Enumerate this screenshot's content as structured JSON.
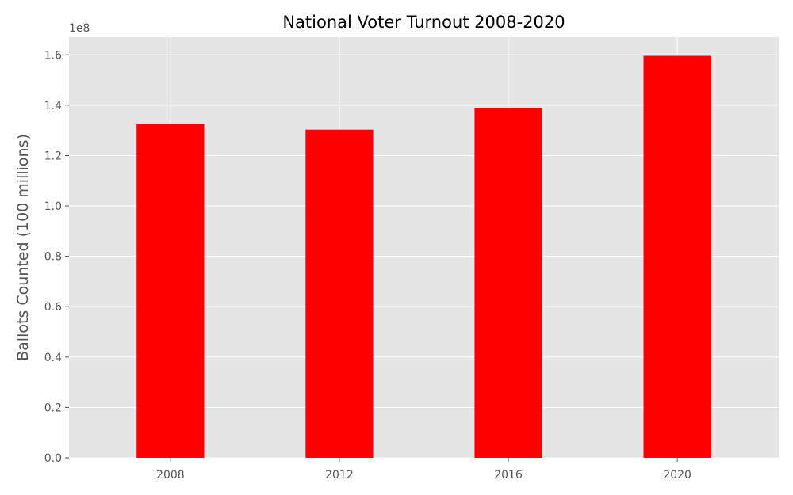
{
  "chart_data": {
    "type": "bar",
    "title": "National Voter Turnout 2008-2020",
    "xlabel": "",
    "ylabel": "Ballots Counted (100 millions)",
    "y_offset_label": "1e8",
    "categories": [
      "2008",
      "2012",
      "2016",
      "2020"
    ],
    "values": [
      132600000,
      130300000,
      139000000,
      159600000
    ],
    "ylim": [
      0,
      167000000
    ],
    "yticks": [
      0,
      20000000,
      40000000,
      60000000,
      80000000,
      100000000,
      120000000,
      140000000,
      160000000
    ],
    "ytick_labels": [
      "0.0",
      "0.2",
      "0.4",
      "0.6",
      "0.8",
      "1.0",
      "1.2",
      "1.4",
      "1.6"
    ],
    "grid": true,
    "colors": {
      "bar": "#ff0000",
      "plot_background": "#e5e5e5",
      "grid": "#ffffff"
    }
  }
}
